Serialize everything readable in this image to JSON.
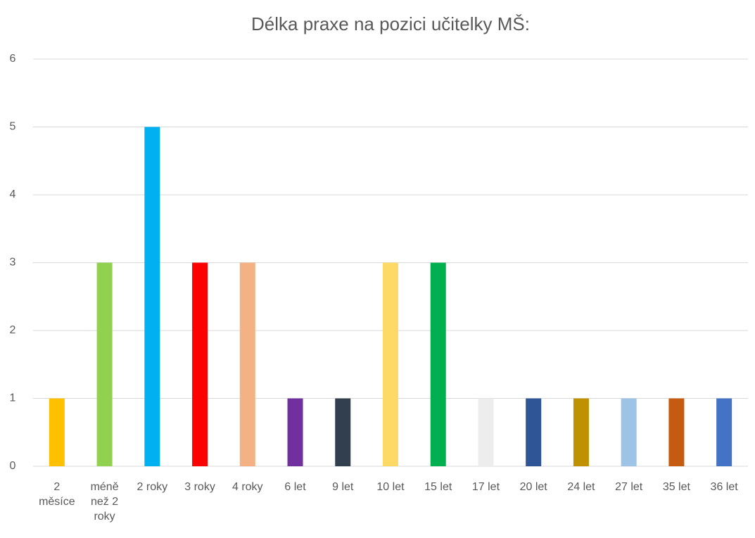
{
  "chart_data": {
    "type": "bar",
    "title": "Délka praxe na pozici učitelky MŠ:",
    "categories": [
      "2 měsíce",
      "méně než 2 roky",
      "2 roky",
      "3 roky",
      "4 roky",
      "6 let",
      "9 let",
      "10 let",
      "15 let",
      "17 let",
      "20 let",
      "24 let",
      "27 let",
      "35 let",
      "36 let"
    ],
    "values": [
      1,
      3,
      5,
      3,
      3,
      1,
      1,
      3,
      3,
      1,
      1,
      1,
      1,
      1,
      1
    ],
    "colors": [
      "#ffc000",
      "#92d050",
      "#00b0f0",
      "#ff0000",
      "#f4b183",
      "#7030a0",
      "#323f4f",
      "#ffd966",
      "#00b050",
      "#ededed",
      "#2f5597",
      "#bf9000",
      "#9dc3e6",
      "#c55a11",
      "#4472c4"
    ],
    "ylim": [
      0,
      6
    ],
    "yticks": [
      0,
      1,
      2,
      3,
      4,
      5,
      6
    ],
    "grid": true
  }
}
